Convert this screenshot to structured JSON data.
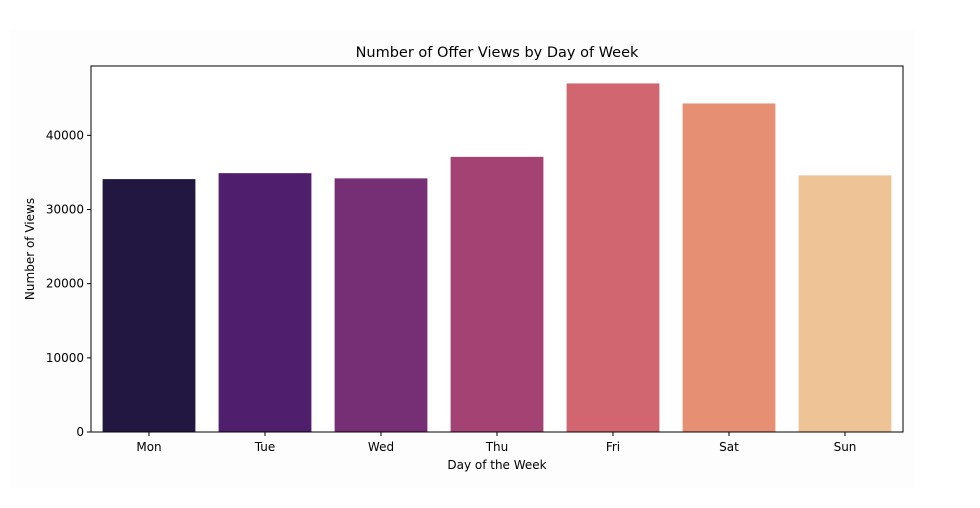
{
  "chart_data": {
    "type": "bar",
    "title": "Number of Offer Views by Day of Week",
    "xlabel": "Day of the Week",
    "ylabel": "Number of Views",
    "categories": [
      "Mon",
      "Tue",
      "Wed",
      "Thu",
      "Fri",
      "Sat",
      "Sun"
    ],
    "values": [
      34100,
      34900,
      34200,
      37100,
      47000,
      44300,
      34600
    ],
    "colors": [
      "#221740",
      "#4f1f6d",
      "#762f74",
      "#a34273",
      "#d16570",
      "#e68f73",
      "#eec497"
    ],
    "yticks": [
      0,
      10000,
      20000,
      30000,
      40000
    ],
    "ytick_labels": [
      "0",
      "10000",
      "20000",
      "30000",
      "40000"
    ],
    "ylim": [
      0,
      49350
    ],
    "grid": false,
    "legend": false
  }
}
